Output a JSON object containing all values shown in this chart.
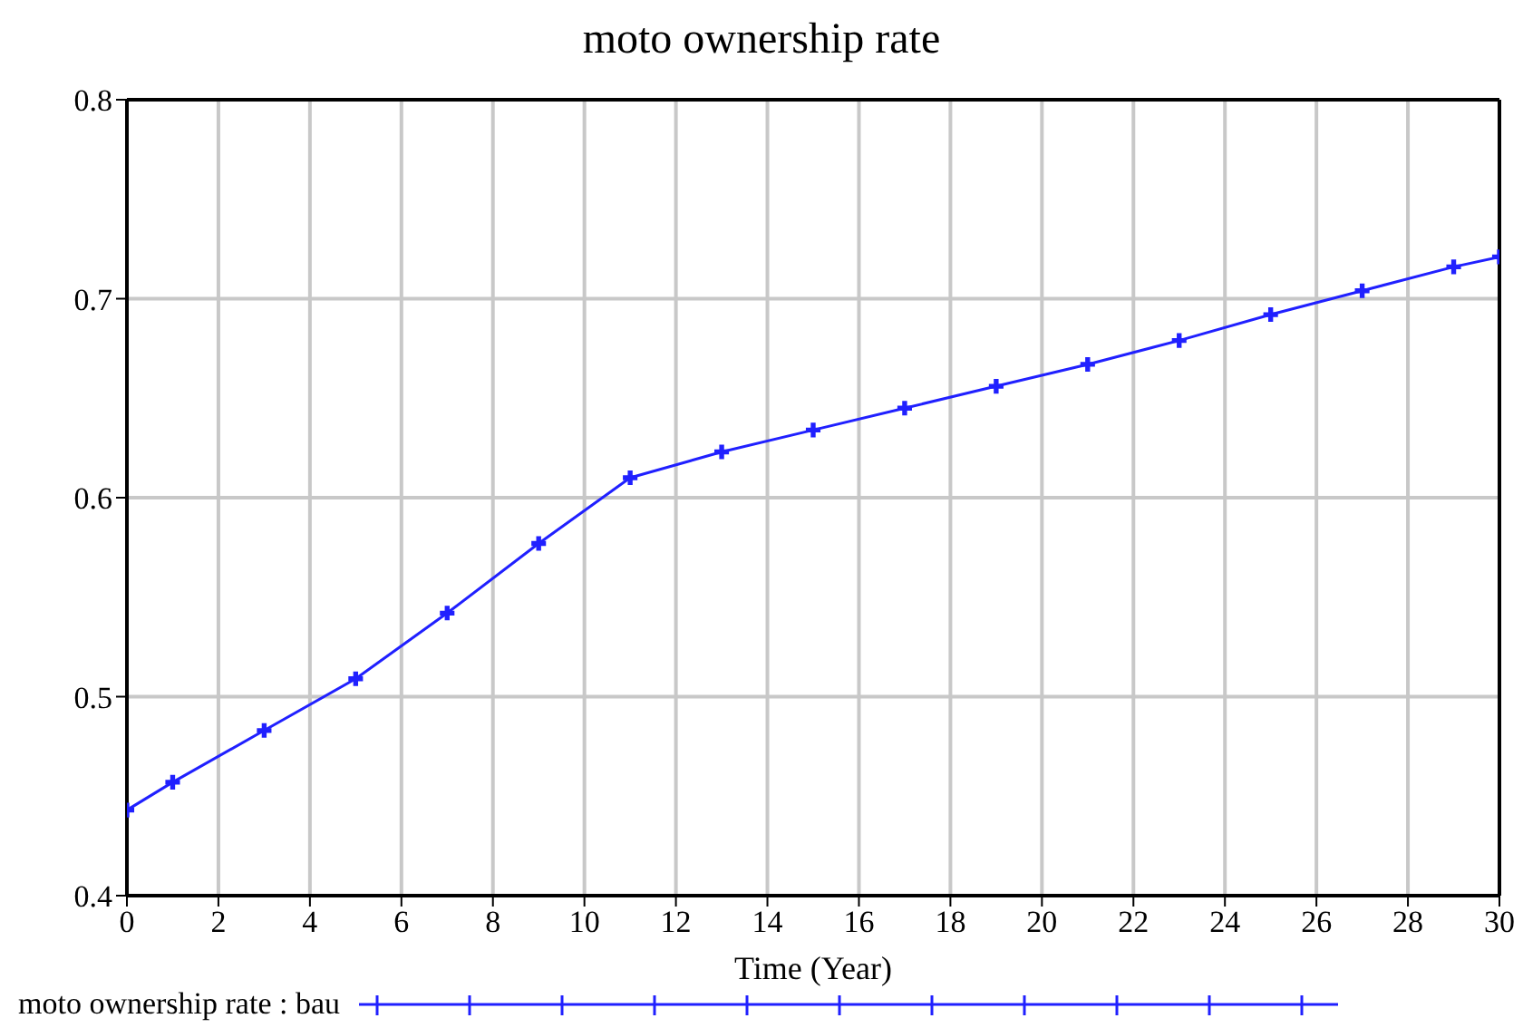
{
  "chart_data": {
    "type": "line",
    "title": "moto ownership rate",
    "xlabel": "Time (Year)",
    "x": [
      0,
      1,
      3,
      5,
      7,
      9,
      11,
      13,
      15,
      17,
      19,
      21,
      23,
      25,
      27,
      29,
      30
    ],
    "series": [
      {
        "name": "moto ownership rate : bau",
        "color": "#2020ff",
        "values": [
          0.443,
          0.457,
          0.483,
          0.509,
          0.542,
          0.577,
          0.61,
          0.623,
          0.634,
          0.645,
          0.656,
          0.667,
          0.679,
          0.692,
          0.704,
          0.716,
          0.721
        ]
      }
    ],
    "xlim": [
      0,
      30
    ],
    "xticks": [
      0,
      2,
      4,
      6,
      8,
      10,
      12,
      14,
      16,
      18,
      20,
      22,
      24,
      26,
      28,
      30
    ],
    "ylim": [
      0.4,
      0.8
    ],
    "yticks": [
      0.4,
      0.5,
      0.6,
      0.7,
      0.8
    ],
    "grid": true,
    "legend": "bottom left",
    "marker": "cross",
    "line_style": "solid"
  }
}
